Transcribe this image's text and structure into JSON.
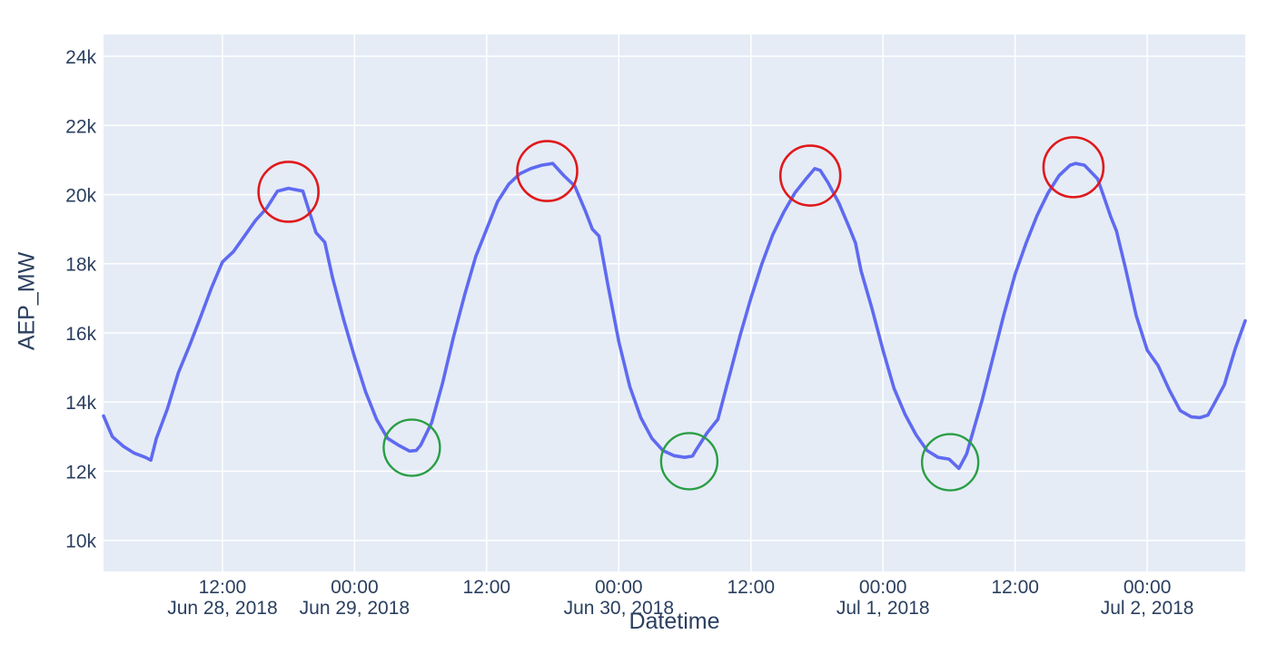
{
  "chart_data": {
    "type": "line",
    "title": "",
    "xlabel": "Datetime",
    "ylabel": "AEP_MW",
    "x_unit": "hours since Jun 28, 2018 00:00",
    "x_range": [
      1.2,
      104.9
    ],
    "y_range": [
      9100,
      24630
    ],
    "grid": true,
    "legend_position": "none",
    "colors": {
      "paper_bg": "#ffffff",
      "plot_bg": "#e5ecf6",
      "grid": "#ffffff",
      "font": "#2a3f5f",
      "line": "#5f6af0",
      "peak_circle": "#e0191c",
      "trough_circle": "#2a9e44"
    },
    "x_ticks": [
      {
        "h": 12,
        "time": "12:00",
        "date": "Jun 28, 2018"
      },
      {
        "h": 24,
        "time": "00:00",
        "date": "Jun 29, 2018"
      },
      {
        "h": 36,
        "time": "12:00",
        "date": ""
      },
      {
        "h": 48,
        "time": "00:00",
        "date": "Jun 30, 2018"
      },
      {
        "h": 60,
        "time": "12:00",
        "date": ""
      },
      {
        "h": 72,
        "time": "00:00",
        "date": "Jul 1, 2018"
      },
      {
        "h": 84,
        "time": "12:00",
        "date": ""
      },
      {
        "h": 96,
        "time": "00:00",
        "date": "Jul 2, 2018"
      }
    ],
    "y_ticks": [
      {
        "v": 10000,
        "label": "10k"
      },
      {
        "v": 12000,
        "label": "12k"
      },
      {
        "v": 14000,
        "label": "14k"
      },
      {
        "v": 16000,
        "label": "16k"
      },
      {
        "v": 18000,
        "label": "18k"
      },
      {
        "v": 20000,
        "label": "20k"
      },
      {
        "v": 22000,
        "label": "22k"
      },
      {
        "v": 24000,
        "label": "24k"
      }
    ],
    "series": [
      {
        "name": "AEP_MW",
        "points": [
          [
            1.2,
            13600
          ],
          [
            2,
            13000
          ],
          [
            3,
            12720
          ],
          [
            4,
            12520
          ],
          [
            5,
            12400
          ],
          [
            5.5,
            12320
          ],
          [
            6,
            12950
          ],
          [
            7,
            13800
          ],
          [
            8,
            14850
          ],
          [
            9,
            15620
          ],
          [
            10,
            16450
          ],
          [
            11,
            17300
          ],
          [
            12,
            18050
          ],
          [
            13,
            18350
          ],
          [
            14,
            18800
          ],
          [
            15,
            19250
          ],
          [
            16,
            19600
          ],
          [
            17,
            20100
          ],
          [
            18,
            20180
          ],
          [
            19.3,
            20100
          ],
          [
            20,
            19400
          ],
          [
            20.5,
            18900
          ],
          [
            21.3,
            18620
          ],
          [
            22,
            17600
          ],
          [
            23,
            16400
          ],
          [
            24,
            15300
          ],
          [
            25,
            14300
          ],
          [
            26,
            13500
          ],
          [
            27,
            12950
          ],
          [
            28,
            12750
          ],
          [
            29,
            12580
          ],
          [
            29.6,
            12600
          ],
          [
            30,
            12750
          ],
          [
            31,
            13400
          ],
          [
            32,
            14550
          ],
          [
            33,
            15900
          ],
          [
            34,
            17100
          ],
          [
            35,
            18200
          ],
          [
            36,
            19000
          ],
          [
            37,
            19800
          ],
          [
            38,
            20300
          ],
          [
            39,
            20600
          ],
          [
            40,
            20750
          ],
          [
            41,
            20850
          ],
          [
            42,
            20900
          ],
          [
            43,
            20550
          ],
          [
            44,
            20250
          ],
          [
            45,
            19500
          ],
          [
            45.6,
            19000
          ],
          [
            46.2,
            18800
          ],
          [
            47,
            17400
          ],
          [
            48,
            15750
          ],
          [
            49,
            14450
          ],
          [
            50,
            13550
          ],
          [
            51,
            12950
          ],
          [
            52,
            12600
          ],
          [
            53,
            12450
          ],
          [
            54,
            12400
          ],
          [
            54.7,
            12440
          ],
          [
            55,
            12600
          ],
          [
            56,
            13100
          ],
          [
            57,
            13500
          ],
          [
            58,
            14700
          ],
          [
            59,
            15900
          ],
          [
            60,
            17000
          ],
          [
            61,
            18000
          ],
          [
            62,
            18850
          ],
          [
            63,
            19500
          ],
          [
            64,
            20050
          ],
          [
            65,
            20450
          ],
          [
            65.8,
            20750
          ],
          [
            66.3,
            20700
          ],
          [
            67,
            20350
          ],
          [
            68,
            19750
          ],
          [
            69,
            19000
          ],
          [
            69.5,
            18600
          ],
          [
            70,
            17800
          ],
          [
            71,
            16700
          ],
          [
            72,
            15500
          ],
          [
            73,
            14400
          ],
          [
            74,
            13650
          ],
          [
            75,
            13050
          ],
          [
            76,
            12600
          ],
          [
            77,
            12400
          ],
          [
            78,
            12350
          ],
          [
            78.9,
            12080
          ],
          [
            79.6,
            12500
          ],
          [
            80,
            12950
          ],
          [
            81,
            14050
          ],
          [
            82,
            15300
          ],
          [
            83,
            16550
          ],
          [
            84,
            17700
          ],
          [
            85,
            18600
          ],
          [
            86,
            19400
          ],
          [
            87,
            20050
          ],
          [
            88,
            20550
          ],
          [
            89,
            20850
          ],
          [
            89.5,
            20900
          ],
          [
            90.3,
            20850
          ],
          [
            91.5,
            20450
          ],
          [
            92.7,
            19350
          ],
          [
            93.2,
            18950
          ],
          [
            94,
            17900
          ],
          [
            95,
            16500
          ],
          [
            96,
            15500
          ],
          [
            97,
            15050
          ],
          [
            98,
            14350
          ],
          [
            99,
            13750
          ],
          [
            100,
            13570
          ],
          [
            100.8,
            13550
          ],
          [
            101.5,
            13620
          ],
          [
            102,
            13900
          ],
          [
            103,
            14500
          ],
          [
            104,
            15550
          ],
          [
            104.9,
            16350
          ]
        ]
      }
    ],
    "annotations": {
      "peaks": [
        {
          "x": 18.0,
          "y": 20080,
          "r": 33
        },
        {
          "x": 41.5,
          "y": 20680,
          "r": 33
        },
        {
          "x": 65.4,
          "y": 20550,
          "r": 33
        },
        {
          "x": 89.3,
          "y": 20790,
          "r": 33
        }
      ],
      "troughs": [
        {
          "x": 29.2,
          "y": 12680,
          "r": 31
        },
        {
          "x": 54.4,
          "y": 12290,
          "r": 31
        },
        {
          "x": 78.1,
          "y": 12260,
          "r": 31
        }
      ]
    }
  }
}
